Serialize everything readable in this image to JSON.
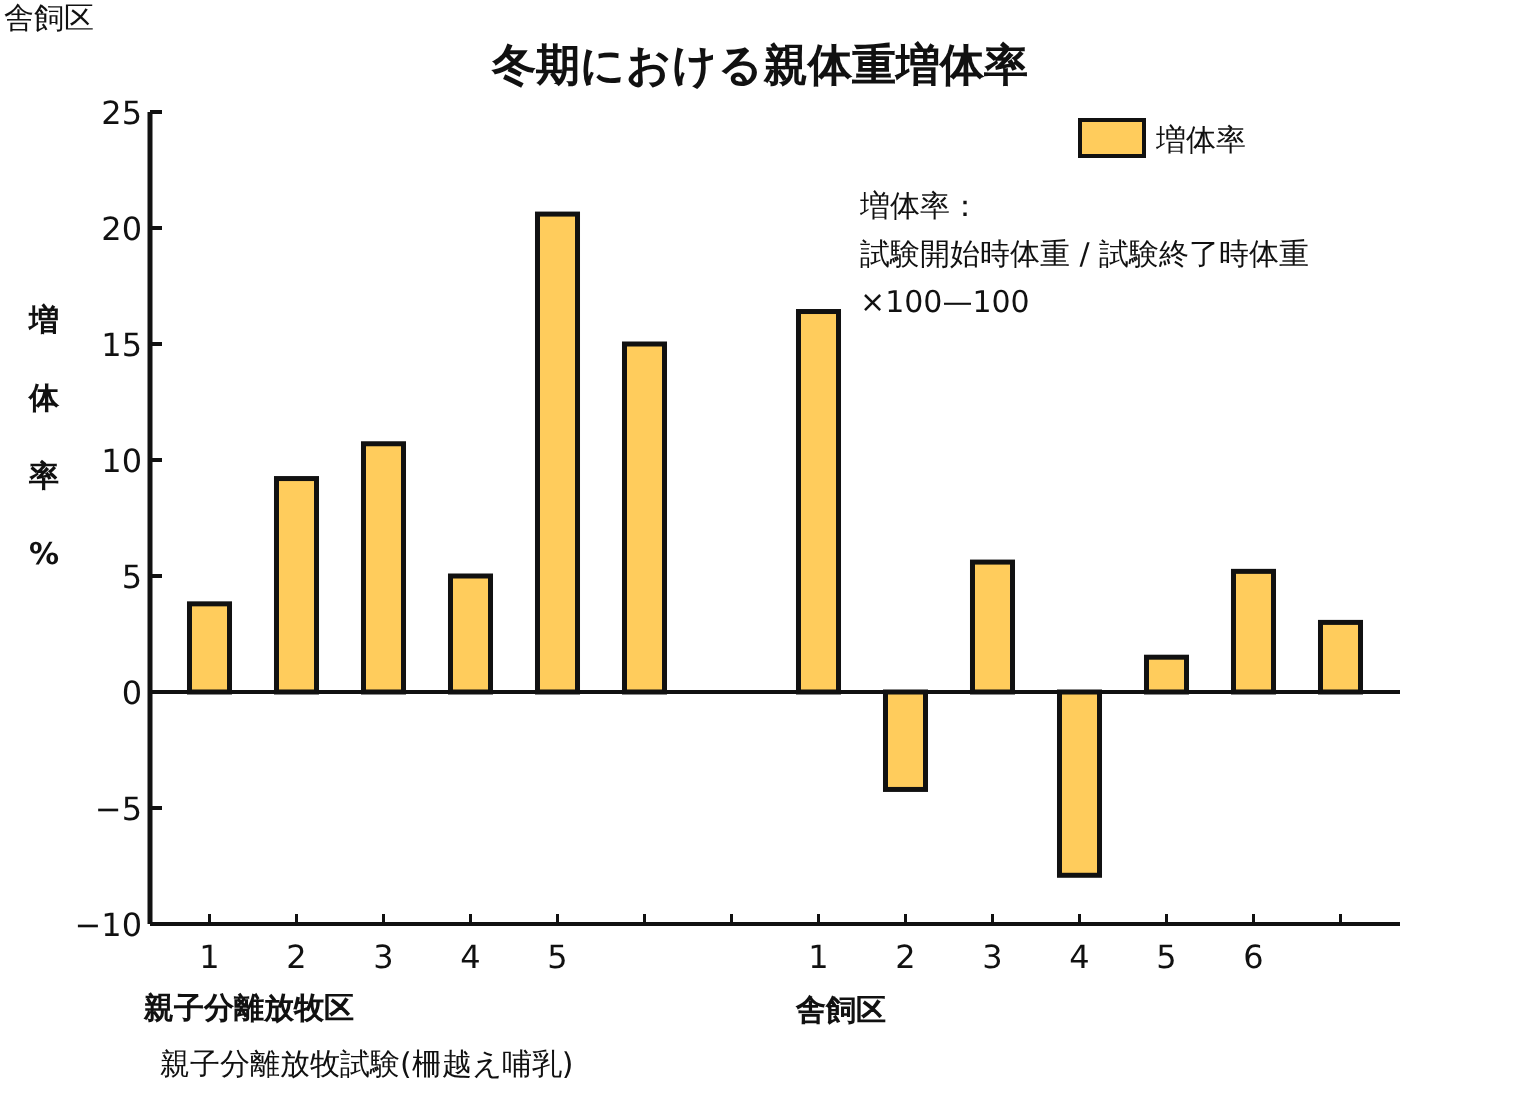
{
  "chart_data": {
    "type": "bar",
    "title": "冬期における親体重増体率",
    "xlabel": "親子分離放牧試験(柵越え哺乳)",
    "ylabel": "増体率%",
    "categories": [
      "1",
      "2",
      "3",
      "4",
      "5",
      null,
      null,
      "1",
      "2",
      "3",
      "4",
      "5",
      "6",
      null
    ],
    "series": [
      {
        "name": "増体率",
        "color": "#ffcc5c",
        "values": [
          3.8,
          9.2,
          10.7,
          5.0,
          20.6,
          15.0,
          null,
          16.4,
          -4.2,
          5.6,
          -7.9,
          1.5,
          5.2,
          3.0
        ]
      }
    ],
    "ylim": [
      -10,
      25
    ],
    "yticks": [
      -10,
      -5,
      0,
      5,
      10,
      15,
      20,
      25
    ],
    "legend": "top right",
    "annotations": [
      "増体率：",
      "試験開始時体重 / 試験終了時体重",
      "×100—100",
      "親子分離放牧区",
      "舎飼区",
      "舎飼区"
    ]
  }
}
